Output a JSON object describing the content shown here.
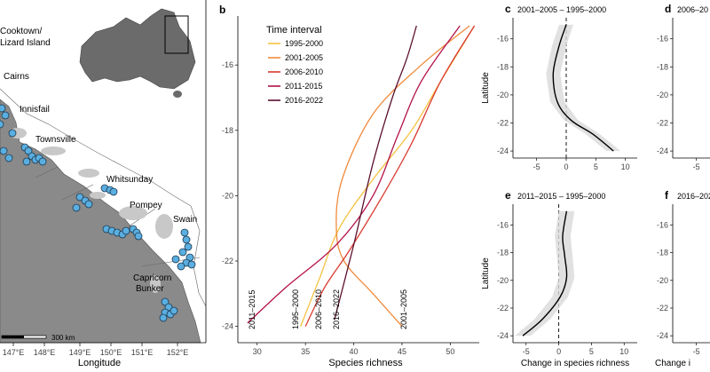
{
  "map_panel": {
    "region_labels": [
      "Cooktown/\nLizard Island",
      "Cairns",
      "Innisfail",
      "Townsville",
      "Whitsunday",
      "Pompey",
      "Swain",
      "Capricorn\nBunker"
    ],
    "x_ticks": [
      "147°E",
      "148°E",
      "149°E",
      "150°E",
      "151°E",
      "152°E"
    ],
    "xlabel": "Longitude",
    "scale_label": "300 km",
    "site_color": "#5aaee0"
  },
  "panel_b": {
    "letter": "b",
    "legend_title": "Time interval",
    "xlabel": "Species richness",
    "curve_labels": [
      "2011–2015",
      "1995–2000",
      "2006–2010",
      "2016–2022",
      "2001–2005"
    ]
  },
  "small_panels": [
    {
      "letter": "c",
      "title": "2001–2005 – 1995–2000",
      "ylabel": "Latitude",
      "xlabel": ""
    },
    {
      "letter": "d",
      "title": "2006–20",
      "ylabel": "",
      "xlabel": ""
    },
    {
      "letter": "e",
      "title": "2011–2015 – 1995–2000",
      "ylabel": "Latitude",
      "xlabel": "Change in species richness"
    },
    {
      "letter": "f",
      "title": "2016–202",
      "ylabel": "",
      "xlabel": "Change i"
    }
  ],
  "chart_data": [
    {
      "type": "line",
      "panel": "b",
      "xlabel": "Species richness",
      "ylabel": "",
      "xlim": [
        28,
        53
      ],
      "ylim": [
        -24.5,
        -14.5
      ],
      "x_ticks": [
        30,
        35,
        40,
        45,
        50
      ],
      "y_ticks": [
        -16,
        -18,
        -20,
        -22,
        -24
      ],
      "legend_position": "top-left",
      "grid": false,
      "series": [
        {
          "name": "1995-2000",
          "color": "#f5c242",
          "points": [
            [
              34.5,
              -24
            ],
            [
              36.5,
              -22.5
            ],
            [
              38.5,
              -21
            ],
            [
              42,
              -19.5
            ],
            [
              46,
              -18
            ],
            [
              49,
              -16.5
            ],
            [
              52.5,
              -14.8
            ]
          ]
        },
        {
          "name": "2001-2005",
          "color": "#f08a3c",
          "points": [
            [
              45,
              -24
            ],
            [
              42,
              -23
            ],
            [
              39,
              -22
            ],
            [
              38.2,
              -21
            ],
            [
              38.8,
              -19.5
            ],
            [
              42,
              -17.5
            ],
            [
              47,
              -16
            ],
            [
              52,
              -14.8
            ]
          ]
        },
        {
          "name": "2006-2010",
          "color": "#d93a2f",
          "points": [
            [
              35,
              -24
            ],
            [
              37,
              -22.8
            ],
            [
              39.5,
              -21.7
            ],
            [
              43,
              -20
            ],
            [
              46,
              -18.4
            ],
            [
              49,
              -16.5
            ],
            [
              52.5,
              -14.8
            ]
          ]
        },
        {
          "name": "2011-2015",
          "color": "#b3124a",
          "points": [
            [
              29,
              -23.9
            ],
            [
              33,
              -22.8
            ],
            [
              38.2,
              -21.5
            ],
            [
              42,
              -20
            ],
            [
              44.5,
              -18.2
            ],
            [
              47,
              -16.5
            ],
            [
              51,
              -14.8
            ]
          ]
        },
        {
          "name": "2016-2022",
          "color": "#5c0f2e",
          "points": [
            [
              38,
              -23.8
            ],
            [
              40,
              -21.5
            ],
            [
              42,
              -19
            ],
            [
              44,
              -17
            ],
            [
              45.5,
              -15.8
            ],
            [
              46.5,
              -14.8
            ]
          ]
        }
      ]
    },
    {
      "type": "line",
      "panel": "c",
      "title": "2001–2005 – 1995–2000",
      "xlabel": "",
      "ylabel": "Latitude",
      "xlim": [
        -9,
        12
      ],
      "ylim": [
        -24.5,
        -14.5
      ],
      "x_ticks": [
        -5,
        0,
        5,
        10
      ],
      "y_ticks": [
        -16,
        -18,
        -20,
        -22,
        -24
      ],
      "series": [
        {
          "name": "",
          "color": "#000000",
          "points": [
            [
              0,
              -15
            ],
            [
              -1.2,
              -16.5
            ],
            [
              -2.2,
              -18.5
            ],
            [
              -1.5,
              -20.5
            ],
            [
              0.8,
              -21.8
            ],
            [
              4.5,
              -22.8
            ],
            [
              8,
              -24
            ]
          ]
        }
      ]
    },
    {
      "type": "line",
      "panel": "e",
      "title": "2011–2015 – 1995–2000",
      "xlabel": "Change in species richness",
      "ylabel": "Latitude",
      "xlim": [
        -7,
        12
      ],
      "ylim": [
        -24.5,
        -14.5
      ],
      "x_ticks": [
        -5,
        0,
        5,
        10
      ],
      "y_ticks": [
        -16,
        -18,
        -20,
        -22,
        -24
      ],
      "series": [
        {
          "name": "",
          "color": "#000000",
          "points": [
            [
              1.2,
              -15
            ],
            [
              0.6,
              -16.8
            ],
            [
              0.9,
              -18.2
            ],
            [
              1.2,
              -19.8
            ],
            [
              0.2,
              -21.2
            ],
            [
              -2.5,
              -22.8
            ],
            [
              -5.5,
              -24
            ]
          ]
        }
      ]
    }
  ]
}
